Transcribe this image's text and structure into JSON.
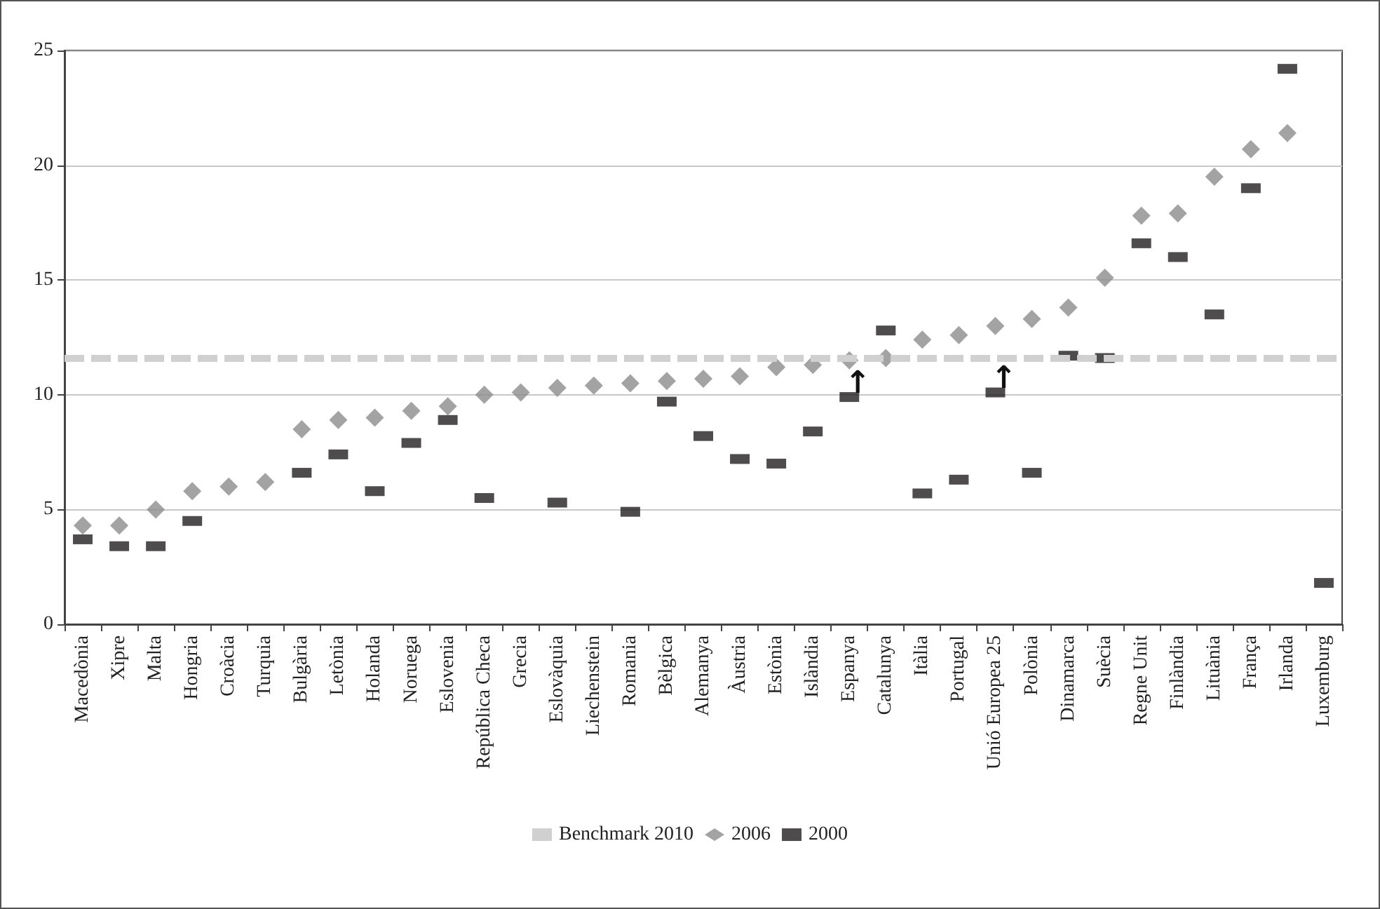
{
  "chart_data": {
    "type": "scatter",
    "categories": [
      "Macedònia",
      "Xipre",
      "Malta",
      "Hongria",
      "Croàcia",
      "Turquia",
      "Bulgària",
      "Letònia",
      "Holanda",
      "Noruega",
      "Eslovenia",
      "República Checa",
      "Grecia",
      "Eslovàquia",
      "Liechenstein",
      "Romania",
      "Bèlgica",
      "Alemanya",
      "Àustria",
      "Estònia",
      "Islàndia",
      "Espanya",
      "Catalunya",
      "Itàlia",
      "Portugal",
      "Unió Europea 25",
      "Polònia",
      "Dinamarca",
      "Suècia",
      "Regne Unit",
      "Finlàndia",
      "Lituània",
      "França",
      "Irlanda",
      "Luxemburg"
    ],
    "series": [
      {
        "name": "2006",
        "color": "#8c8c8c",
        "marker": "diamond",
        "values": [
          4.3,
          4.3,
          5.0,
          5.8,
          6.0,
          6.2,
          8.5,
          8.9,
          9.0,
          9.3,
          9.5,
          10.0,
          10.1,
          10.3,
          10.4,
          10.5,
          10.6,
          10.7,
          10.8,
          11.2,
          11.3,
          11.5,
          11.6,
          12.4,
          12.6,
          13.0,
          13.3,
          13.8,
          15.1,
          17.8,
          17.9,
          19.5,
          20.7,
          21.4,
          null
        ]
      },
      {
        "name": "2000",
        "color": "#231f20",
        "marker": "square",
        "values": [
          3.7,
          3.4,
          3.4,
          4.5,
          null,
          null,
          6.6,
          7.4,
          5.8,
          7.9,
          8.9,
          5.5,
          null,
          5.3,
          null,
          4.9,
          9.7,
          8.2,
          7.2,
          7.0,
          8.4,
          9.9,
          12.8,
          5.7,
          6.3,
          10.1,
          6.6,
          11.7,
          11.6,
          16.6,
          16.0,
          13.5,
          19.0,
          24.2,
          1.8
        ]
      }
    ],
    "ref_lines": [
      {
        "axis": "y",
        "value": 11.6,
        "label": "Benchmark 2010",
        "color": "#d0d0d0",
        "line_style": "dashed"
      }
    ],
    "annotations": [
      {
        "text": "↑",
        "x": "Espanya",
        "y": 10
      },
      {
        "text": "↑",
        "x": "Unió Europea 25",
        "y": 10.2
      }
    ],
    "ylim": [
      0,
      25
    ],
    "yticks": [
      0,
      5,
      10,
      15,
      20,
      25
    ],
    "grid": "y",
    "legend": "bottom"
  }
}
